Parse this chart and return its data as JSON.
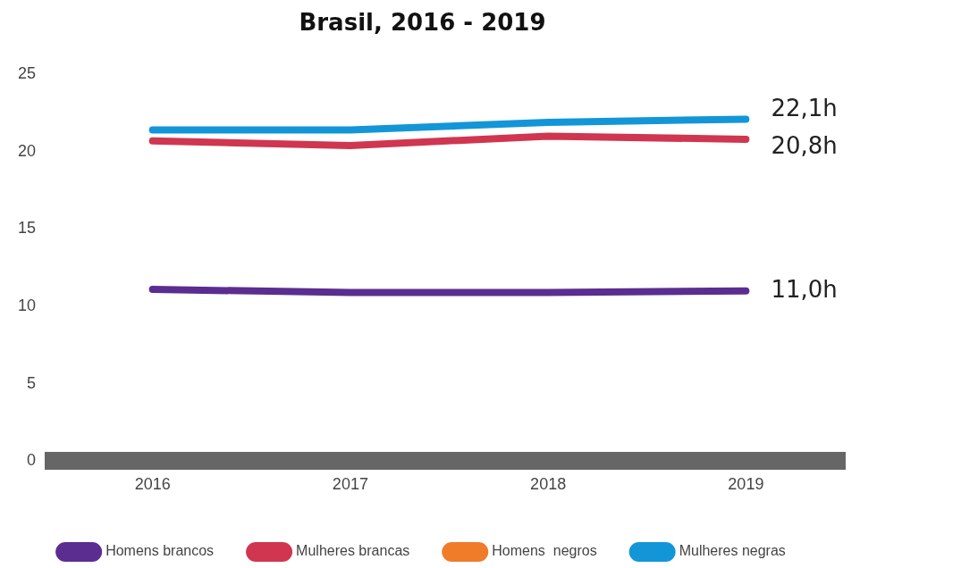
{
  "chart_data": {
    "type": "line",
    "title": "Brasil, 2016 - 2019",
    "categories": [
      "2016",
      "2017",
      "2018",
      "2019"
    ],
    "series": [
      {
        "name": "Homens brancos",
        "color": "#5b2d90",
        "values": [
          11.1,
          10.9,
          10.9,
          11.0
        ],
        "value_labels": [
          null,
          null,
          null,
          "11,0h"
        ]
      },
      {
        "name": "Mulheres brancas",
        "color": "#d0364f",
        "values": [
          20.7,
          20.4,
          21.0,
          20.8
        ],
        "value_labels": [
          null,
          null,
          null,
          "20,8h"
        ]
      },
      {
        "name": "Homens  negros",
        "color": "#f07c2a",
        "values": [
          null,
          null,
          null,
          null
        ]
      },
      {
        "name": "Mulheres negras",
        "color": "#1296d8",
        "values": [
          21.4,
          21.4,
          21.9,
          22.1
        ],
        "value_labels": [
          null,
          null,
          null,
          "22,1h"
        ]
      }
    ],
    "ylim": [
      0,
      25
    ],
    "yticks": [
      0,
      5,
      10,
      15,
      20,
      25
    ],
    "grid": false,
    "legend": "bottom",
    "marker": "none",
    "line_style": "solid"
  }
}
